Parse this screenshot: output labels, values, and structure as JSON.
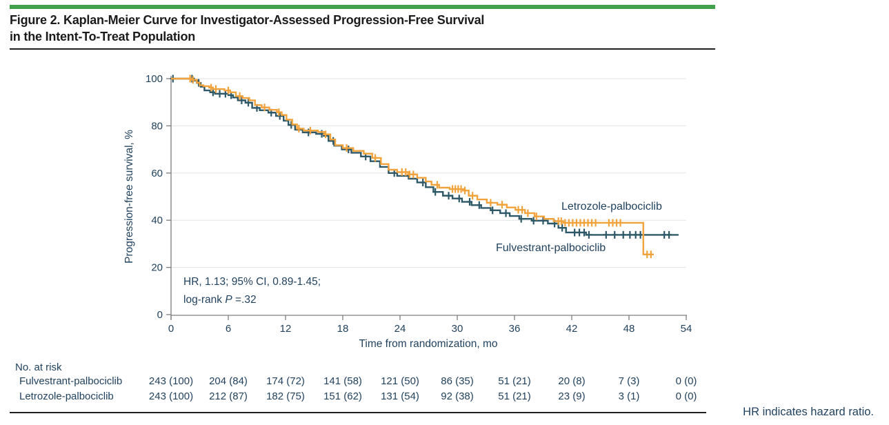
{
  "figure": {
    "title_line1": "Figure 2. Kaplan-Meier Curve for Investigator-Assessed Progression-Free Survival",
    "title_line2": "in the Intent-To-Treat Population",
    "footnote": "HR indicates hazard ratio."
  },
  "annotation": {
    "line1": "HR, 1.13; 95% CI, 0.89-1.45;",
    "line2_prefix": "log-rank ",
    "line2_italic": "P",
    "line2_suffix": " =.32"
  },
  "colors": {
    "header_bar_green": "#3FA24A",
    "letrozole_orange": "#F2A23B",
    "fulvestrant_teal": "#2D5868",
    "chart_text_navy": "#21425f",
    "axis_gray": "#7d7d7d",
    "gridline_gray": "#e3e3e3",
    "title_black": "#1b1b1b"
  },
  "chart_data": {
    "type": "line",
    "subtype": "kaplan-meier-step",
    "title": "",
    "xlabel": "Time from randomization, mo",
    "ylabel": "Progression-free survival, %",
    "xlim": [
      0,
      54
    ],
    "ylim": [
      0,
      100
    ],
    "x_ticks": [
      0,
      6,
      12,
      18,
      24,
      30,
      36,
      42,
      48,
      54
    ],
    "y_ticks": [
      0,
      20,
      40,
      60,
      80,
      100
    ],
    "grid": "horizontal",
    "legend_position": "labels-on-plot",
    "series": [
      {
        "name": "Letrozole-palbociclib",
        "color": "#F2A23B",
        "steps": [
          [
            0,
            100
          ],
          [
            1.9,
            100
          ],
          [
            2.1,
            99.5
          ],
          [
            2.5,
            99.5
          ],
          [
            2.7,
            98.3
          ],
          [
            3.0,
            97.2
          ],
          [
            3.4,
            96.8
          ],
          [
            4.0,
            96.2
          ],
          [
            4.4,
            95.6
          ],
          [
            5.6,
            95.0
          ],
          [
            6.2,
            94.2
          ],
          [
            6.8,
            92.6
          ],
          [
            7.5,
            91.8
          ],
          [
            8.2,
            90.8
          ],
          [
            8.8,
            88.8
          ],
          [
            9.5,
            87.8
          ],
          [
            10.3,
            86.8
          ],
          [
            11.1,
            85.8
          ],
          [
            11.6,
            84.6
          ],
          [
            12.1,
            82.6
          ],
          [
            12.7,
            80.6
          ],
          [
            13.2,
            78.8
          ],
          [
            13.9,
            78.0
          ],
          [
            15.4,
            77.4
          ],
          [
            16.1,
            76.4
          ],
          [
            16.7,
            74.2
          ],
          [
            17.2,
            71.8
          ],
          [
            18.0,
            70.6
          ],
          [
            19.1,
            69.4
          ],
          [
            20.2,
            68.2
          ],
          [
            21.1,
            66.4
          ],
          [
            22.0,
            63.8
          ],
          [
            22.8,
            61.4
          ],
          [
            23.7,
            60.4
          ],
          [
            24.9,
            59.4
          ],
          [
            25.8,
            58.0
          ],
          [
            26.7,
            56.4
          ],
          [
            27.3,
            55.0
          ],
          [
            28.1,
            53.8
          ],
          [
            29.2,
            53.2
          ],
          [
            30.7,
            52.6
          ],
          [
            31.2,
            50.4
          ],
          [
            32.1,
            48.8
          ],
          [
            33.1,
            47.4
          ],
          [
            34.2,
            46.6
          ],
          [
            35.2,
            45.4
          ],
          [
            36.1,
            44.4
          ],
          [
            37.1,
            43.0
          ],
          [
            38.1,
            41.6
          ],
          [
            39.1,
            40.6
          ],
          [
            40.1,
            39.6
          ],
          [
            41.1,
            38.9
          ],
          [
            49.4,
            38.9
          ],
          [
            49.5,
            25.5
          ],
          [
            50.6,
            25.5
          ]
        ],
        "censor_months": [
          2.0,
          2.3,
          4.2,
          4.7,
          6.0,
          7.2,
          9.8,
          11.3,
          13.4,
          14.6,
          16.2,
          18.4,
          21.4,
          24.2,
          24.6,
          25.0,
          25.4,
          27.9,
          29.5,
          29.8,
          30.1,
          30.4,
          30.8,
          31.6,
          33.5,
          34.7,
          36.4,
          36.8,
          37.4,
          38.3,
          40.6,
          40.9,
          41.3,
          41.7,
          42.1,
          42.5,
          42.9,
          43.3,
          43.7,
          44.1,
          44.5,
          45.9,
          46.3,
          46.7,
          47.1,
          49.9,
          50.3
        ]
      },
      {
        "name": "Fulvestrant-palbociclib",
        "color": "#2D5868",
        "steps": [
          [
            0,
            100
          ],
          [
            2.1,
            100
          ],
          [
            2.4,
            99.2
          ],
          [
            2.8,
            98.2
          ],
          [
            3.1,
            96.6
          ],
          [
            3.5,
            95.0
          ],
          [
            4.1,
            94.2
          ],
          [
            4.6,
            93.6
          ],
          [
            6.0,
            93.0
          ],
          [
            6.5,
            92.0
          ],
          [
            7.0,
            90.8
          ],
          [
            7.8,
            89.8
          ],
          [
            8.5,
            87.6
          ],
          [
            9.3,
            86.6
          ],
          [
            10.2,
            85.6
          ],
          [
            11.0,
            84.2
          ],
          [
            11.8,
            82.2
          ],
          [
            12.3,
            80.4
          ],
          [
            13.0,
            78.4
          ],
          [
            13.8,
            77.2
          ],
          [
            15.2,
            76.6
          ],
          [
            16.0,
            75.8
          ],
          [
            16.5,
            73.6
          ],
          [
            17.1,
            71.6
          ],
          [
            17.9,
            70.0
          ],
          [
            18.9,
            68.6
          ],
          [
            19.9,
            67.0
          ],
          [
            20.9,
            65.0
          ],
          [
            21.9,
            62.6
          ],
          [
            22.8,
            60.0
          ],
          [
            23.7,
            58.8
          ],
          [
            24.9,
            57.6
          ],
          [
            25.8,
            56.0
          ],
          [
            26.7,
            54.0
          ],
          [
            27.5,
            52.0
          ],
          [
            28.5,
            50.4
          ],
          [
            29.5,
            49.2
          ],
          [
            30.5,
            47.8
          ],
          [
            31.5,
            46.4
          ],
          [
            32.5,
            45.2
          ],
          [
            33.5,
            44.2
          ],
          [
            34.5,
            43.0
          ],
          [
            35.5,
            41.8
          ],
          [
            36.5,
            40.6
          ],
          [
            37.8,
            39.8
          ],
          [
            39.5,
            38.6
          ],
          [
            40.6,
            36.8
          ],
          [
            41.4,
            34.8
          ],
          [
            43.5,
            33.8
          ],
          [
            53.2,
            33.8
          ]
        ],
        "censor_months": [
          0.2,
          2.2,
          2.9,
          4.4,
          5.1,
          5.7,
          6.3,
          7.4,
          8.1,
          9.0,
          10.5,
          11.4,
          12.6,
          14.4,
          15.8,
          17.0,
          18.6,
          20.4,
          23.4,
          26.4,
          27.7,
          29.1,
          30.2,
          31.3,
          32.3,
          33.7,
          35.1,
          36.7,
          38.0,
          39.0,
          40.2,
          41.0,
          42.3,
          42.8,
          43.3,
          43.8,
          45.6,
          46.5,
          47.4,
          48.1,
          48.7,
          49.2,
          51.7,
          52.2
        ]
      }
    ],
    "annotations": [
      "HR, 1.13; 95% CI, 0.89-1.45;",
      "log-rank P =.32"
    ]
  },
  "at_risk": {
    "header": "No. at risk",
    "rows": [
      {
        "label": "Fulvestrant-palbociclib",
        "values": [
          "243 (100)",
          "204 (84)",
          "174 (72)",
          "141 (58)",
          "121 (50)",
          "86 (35)",
          "51 (21)",
          "20 (8)",
          "7 (3)",
          "0 (0)"
        ]
      },
      {
        "label": "Letrozole-palbociclib",
        "values": [
          "243 (100)",
          "212 (87)",
          "182 (75)",
          "151 (62)",
          "131 (54)",
          "92 (38)",
          "51 (21)",
          "23 (9)",
          "3 (1)",
          "0 (0)"
        ]
      }
    ]
  }
}
